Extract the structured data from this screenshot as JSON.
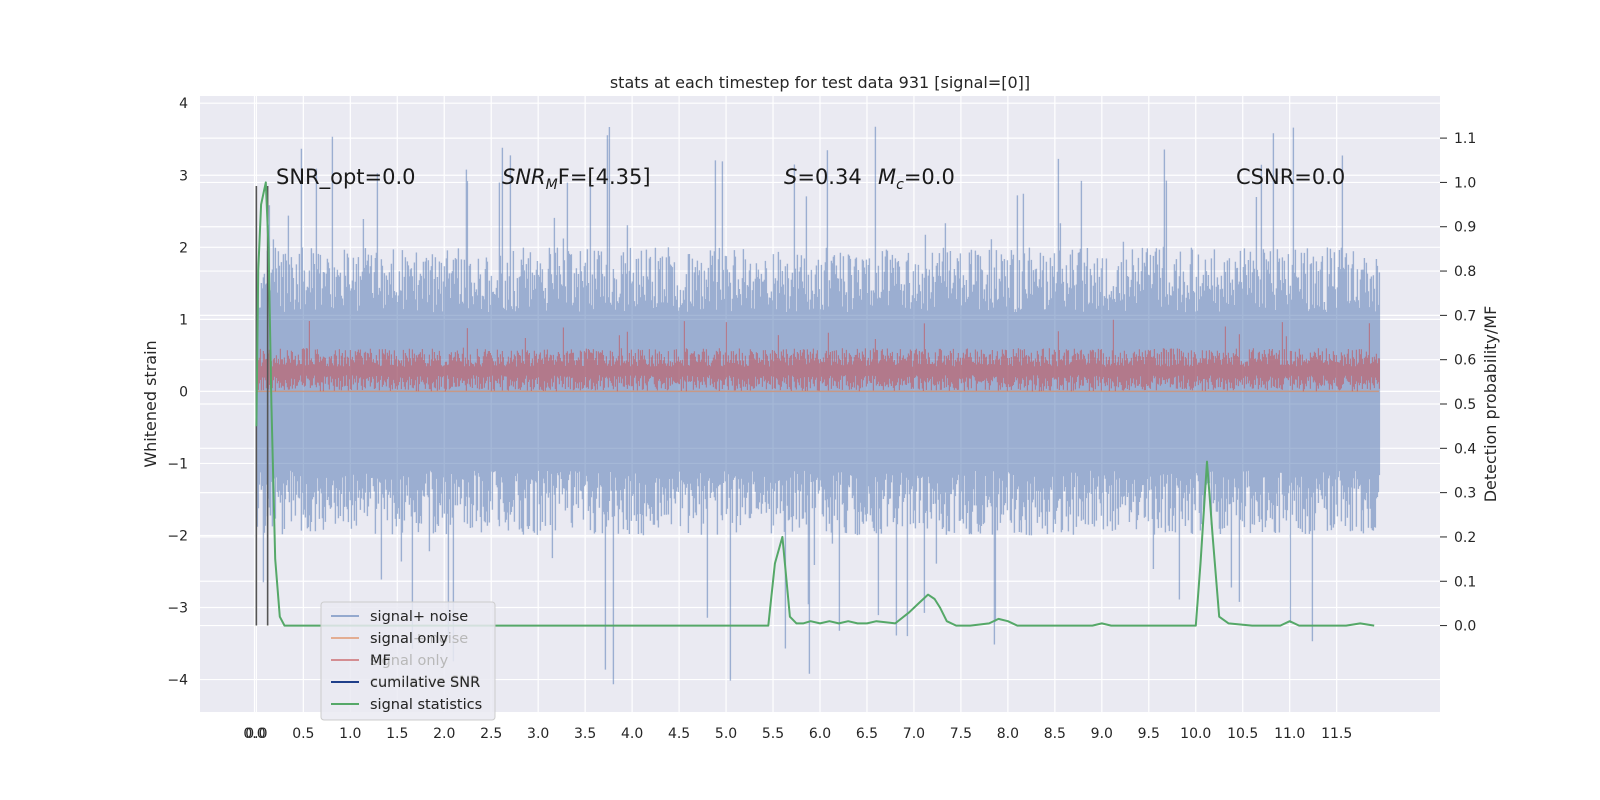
{
  "chart_data": {
    "type": "line",
    "title": "stats at each timestep for test data 931 [signal=[0]]",
    "ylabel": "Whitened strain",
    "y2label": "Detection probability/MF",
    "xlim": [
      -0.6,
      12.6
    ],
    "ylim": [
      -4.45,
      4.1
    ],
    "y2lim": [
      -0.195,
      1.195
    ],
    "x_ticks": [
      "0.0",
      "0.0",
      "0.5",
      "1.0",
      "1.5",
      "2.0",
      "2.5",
      "3.0",
      "3.5",
      "4.0",
      "4.5",
      "5.0",
      "5.5",
      "6.0",
      "6.5",
      "7.0",
      "7.5",
      "8.0",
      "8.5",
      "9.0",
      "9.5",
      "10.0",
      "10.5",
      "11.0",
      "11.5"
    ],
    "x_tick_values": [
      -0.02,
      0.0,
      0.5,
      1.0,
      1.5,
      2.0,
      2.5,
      3.0,
      3.5,
      4.0,
      4.5,
      5.0,
      5.5,
      6.0,
      6.5,
      7.0,
      7.5,
      8.0,
      8.5,
      9.0,
      9.5,
      10.0,
      10.5,
      11.0,
      11.5
    ],
    "y_ticks": [
      "4",
      "3",
      "2",
      "1",
      "0",
      "−1",
      "−2",
      "−3",
      "−4"
    ],
    "y_tick_values": [
      4,
      3,
      2,
      1,
      0,
      -1,
      -2,
      -3,
      -4
    ],
    "y2_ticks": [
      "1.1",
      "1.0",
      "0.9",
      "0.8",
      "0.7",
      "0.6",
      "0.5",
      "0.4",
      "0.3",
      "0.2",
      "0.1",
      "0.0"
    ],
    "y2_tick_values": [
      1.1,
      1.0,
      0.9,
      0.8,
      0.7,
      0.6,
      0.5,
      0.4,
      0.3,
      0.2,
      0.1,
      0.0
    ],
    "annotations": {
      "snr_opt": "SNR_opt=0.0",
      "snr_mf_main": "SNR",
      "snr_mf_sub": "M",
      "snr_mf_tail": "F=[4.35]",
      "s_main": "S",
      "s_tail": "=0.34",
      "mc_main": "M",
      "mc_sub": "c",
      "mc_tail": "=0.0",
      "csnr": "CSNR=0.0"
    },
    "legend": {
      "placement": "lower-left",
      "entries": [
        "signal+ noise",
        "signal only",
        "MF",
        "cumilative SNR",
        "signal statistics"
      ],
      "ghost_entries": [
        "signal+ noise",
        "signal only",
        "cumilative SNR",
        "signal statistics"
      ]
    },
    "series": [
      {
        "name": "signal+ noise",
        "kind": "noise",
        "t_range": [
          0.0,
          11.95
        ],
        "mean": 0.0,
        "typical_range": [
          -2.0,
          2.0
        ],
        "peak_range": [
          -4.1,
          3.7
        ],
        "color": "#4c72b0"
      },
      {
        "name": "signal only",
        "kind": "flat",
        "t_range": [
          0.0,
          11.95
        ],
        "value": 0.0,
        "color": "#dd8452"
      },
      {
        "name": "MF",
        "kind": "noise",
        "t_range": [
          0.0,
          11.95
        ],
        "mean": 0.28,
        "typical_range": [
          0.0,
          0.6
        ],
        "peak_range": [
          0.0,
          1.0
        ],
        "color": "#c44e52"
      },
      {
        "name": "cumilative SNR",
        "kind": "vline",
        "x": [
          0.0,
          0.12
        ],
        "y_top": [
          2.85,
          2.85
        ],
        "y_bottom": [
          -3.25,
          -3.25
        ],
        "color": "#555555"
      },
      {
        "name": "signal statistics",
        "kind": "line",
        "axis": "right",
        "color": "#55a868",
        "x": [
          0.0,
          0.02,
          0.05,
          0.08,
          0.1,
          0.13,
          0.16,
          0.2,
          0.25,
          0.3,
          1.0,
          2.0,
          3.0,
          4.0,
          5.0,
          5.45,
          5.52,
          5.6,
          5.68,
          5.75,
          5.82,
          5.9,
          6.0,
          6.1,
          6.2,
          6.3,
          6.4,
          6.5,
          6.6,
          6.8,
          6.95,
          7.05,
          7.15,
          7.22,
          7.28,
          7.35,
          7.45,
          7.6,
          7.8,
          7.9,
          8.0,
          8.1,
          8.3,
          8.6,
          8.9,
          9.0,
          9.1,
          9.4,
          9.8,
          10.0,
          10.05,
          10.12,
          10.18,
          10.25,
          10.35,
          10.6,
          10.9,
          11.0,
          11.1,
          11.3,
          11.6,
          11.75,
          11.9
        ],
        "y": [
          0.45,
          0.8,
          0.95,
          0.98,
          1.0,
          0.85,
          0.5,
          0.15,
          0.02,
          0.0,
          0.0,
          0.0,
          0.0,
          0.0,
          0.0,
          0.0,
          0.14,
          0.2,
          0.02,
          0.005,
          0.005,
          0.01,
          0.005,
          0.01,
          0.005,
          0.01,
          0.005,
          0.005,
          0.01,
          0.005,
          0.03,
          0.05,
          0.07,
          0.06,
          0.04,
          0.01,
          0.0,
          0.0,
          0.005,
          0.015,
          0.01,
          0.0,
          0.0,
          0.0,
          0.0,
          0.005,
          0.0,
          0.0,
          0.0,
          0.0,
          0.14,
          0.37,
          0.2,
          0.02,
          0.005,
          0.0,
          0.0,
          0.01,
          0.0,
          0.0,
          0.0,
          0.005,
          0.0
        ]
      }
    ],
    "grid": true
  }
}
